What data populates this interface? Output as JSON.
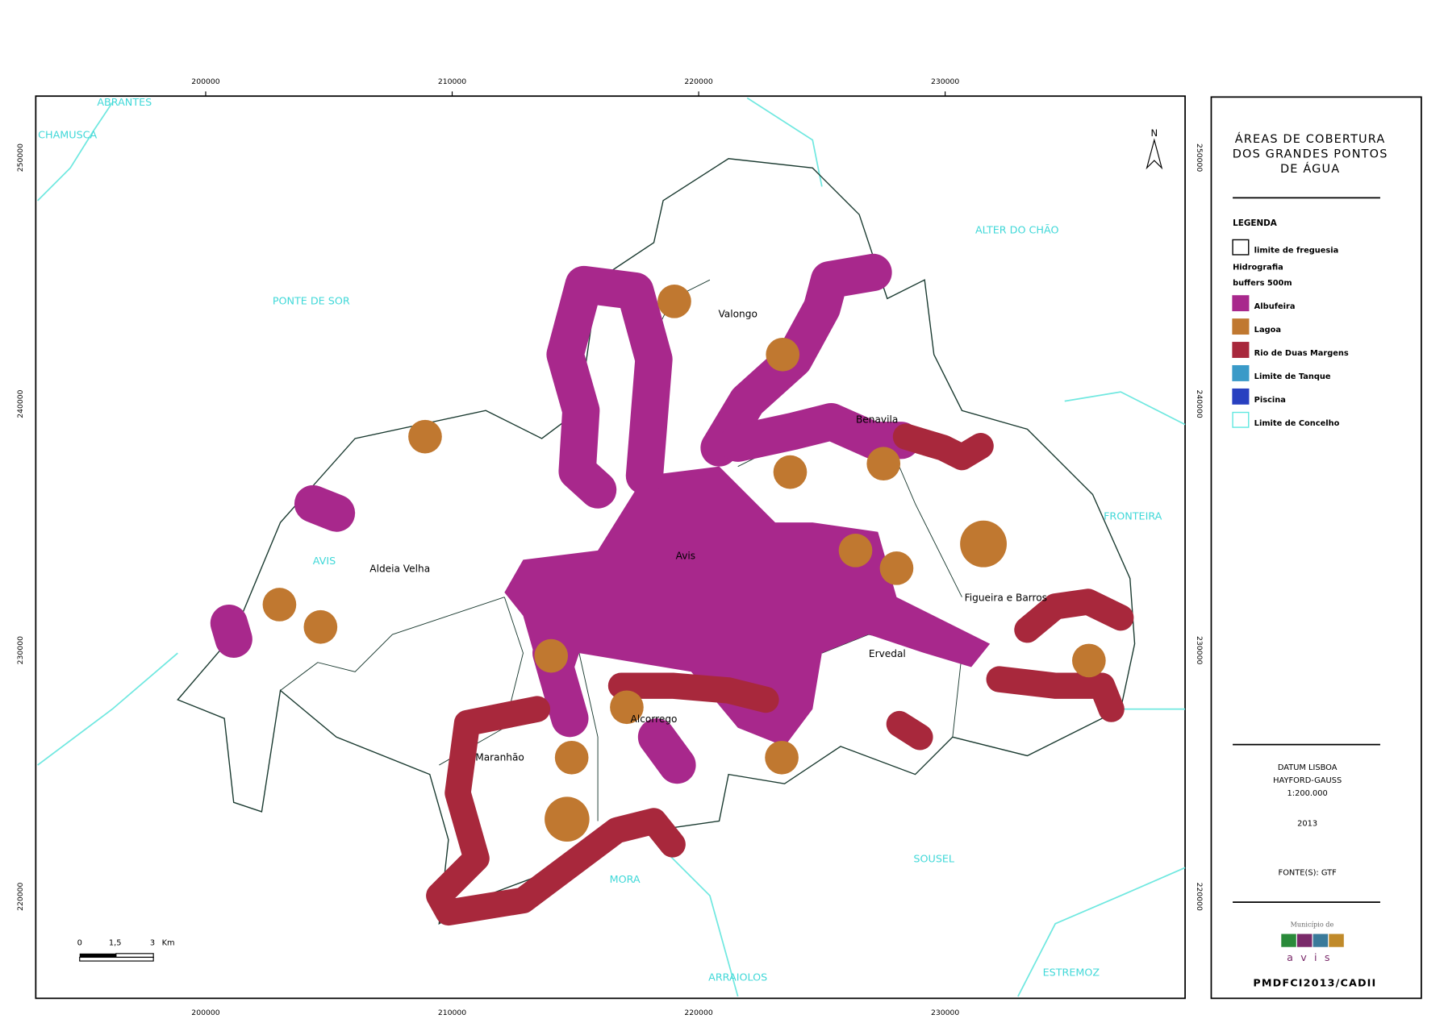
{
  "map": {
    "x_ticks": [
      "200000",
      "210000",
      "220000",
      "230000"
    ],
    "y_ticks": [
      "250000",
      "240000",
      "230000",
      "220000"
    ],
    "concelhos": [
      "ABRANTES",
      "CHAMUSCA",
      "PONTE DE SOR",
      "ALTER DO CHÃO",
      "AVIS",
      "FRONTEIRA",
      "SOUSEL",
      "MORA",
      "ARRAIOLOS",
      "ESTREMOZ"
    ],
    "freguesias": [
      "Valongo",
      "Benavila",
      "Avis",
      "Aldeia Velha",
      "Figueira e Barros",
      "Ervedal",
      "Alcorrego",
      "Maranhão"
    ],
    "north": "N",
    "scale_bar": [
      "0",
      "1,5",
      "3",
      "Km"
    ]
  },
  "panel": {
    "title": [
      "ÁREAS DE COBERTURA",
      "DOS GRANDES PONTOS",
      "DE ÁGUA"
    ],
    "legend_title": "LEGENDA",
    "legend": [
      {
        "label": "limite de freguesia",
        "fill": "#ffffff",
        "stroke": "#000000"
      },
      {
        "label": "Hidrografia"
      },
      {
        "label": "buffers 500m"
      },
      {
        "label": "Albufeira",
        "fill": "#a8288c",
        "stroke": "#a8288c"
      },
      {
        "label": "Lagoa",
        "fill": "#c07830",
        "stroke": "#c07830"
      },
      {
        "label": "Rio de Duas Margens",
        "fill": "#a8283c",
        "stroke": "#a8283c"
      },
      {
        "label": "Limite de Tanque",
        "fill": "#3a9ac8",
        "stroke": "#3a9ac8"
      },
      {
        "label": "Piscina",
        "fill": "#2840c0",
        "stroke": "#2840c0"
      },
      {
        "label": "Limite de Concelho",
        "fill": "#ffffff",
        "stroke": "#60e8e0"
      }
    ],
    "datum": [
      "DATUM LISBOA",
      "HAYFORD-GAUSS",
      "1:200.000"
    ],
    "year": "2013",
    "source": "FONTE(S): GTF",
    "logo": [
      "Município de",
      "avis"
    ],
    "footer": "PMDFCI2013/CADII"
  }
}
